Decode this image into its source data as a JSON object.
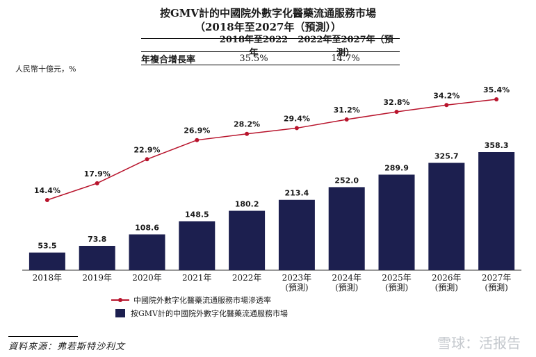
{
  "title_line1": "按GMV計的中國院外數字化醫藥流通服務市場",
  "title_line2": "（2018年至2027年（預測））",
  "cagr_table": {
    "header": [
      "",
      "2018年至2022年",
      "2022年至2027年（預測）"
    ],
    "row": [
      "年複合增長率",
      "35.5%",
      "14.7%"
    ]
  },
  "unit_label": "人民幣十億元，%",
  "chart_data": {
    "type": "bar",
    "categories": [
      "2018年",
      "2019年",
      "2020年",
      "2021年",
      "2022年",
      "2023年\n(預測)",
      "2024年\n(預測)",
      "2025年\n(預測)",
      "2026年\n(預測)",
      "2027年\n(預測)"
    ],
    "series": [
      {
        "name": "按GMV計的中國院外數字化醫藥流通服務市場",
        "type": "bar",
        "values": [
          53.5,
          73.8,
          108.6,
          148.5,
          180.2,
          213.4,
          252.0,
          289.9,
          325.7,
          358.3
        ],
        "labels": [
          "53.5",
          "73.8",
          "108.6",
          "148.5",
          "180.2",
          "213.4",
          "252.0",
          "289.9",
          "325.7",
          "358.3"
        ],
        "color": "#1c1f4f"
      },
      {
        "name": "中國院外數字化醫藥流通服務市場滲透率",
        "type": "line",
        "values": [
          14.4,
          17.9,
          22.9,
          26.9,
          28.2,
          29.4,
          31.2,
          32.8,
          34.2,
          35.4
        ],
        "labels": [
          "14.4%",
          "17.9%",
          "22.9%",
          "26.9%",
          "28.2%",
          "29.4%",
          "31.2%",
          "32.8%",
          "34.2%",
          "35.4%"
        ],
        "color": "#b8142c"
      }
    ],
    "legend_position": "bottom-left",
    "grid": false
  },
  "source": "資料來源：弗若斯特沙利文",
  "watermark": "雪球：活报告"
}
